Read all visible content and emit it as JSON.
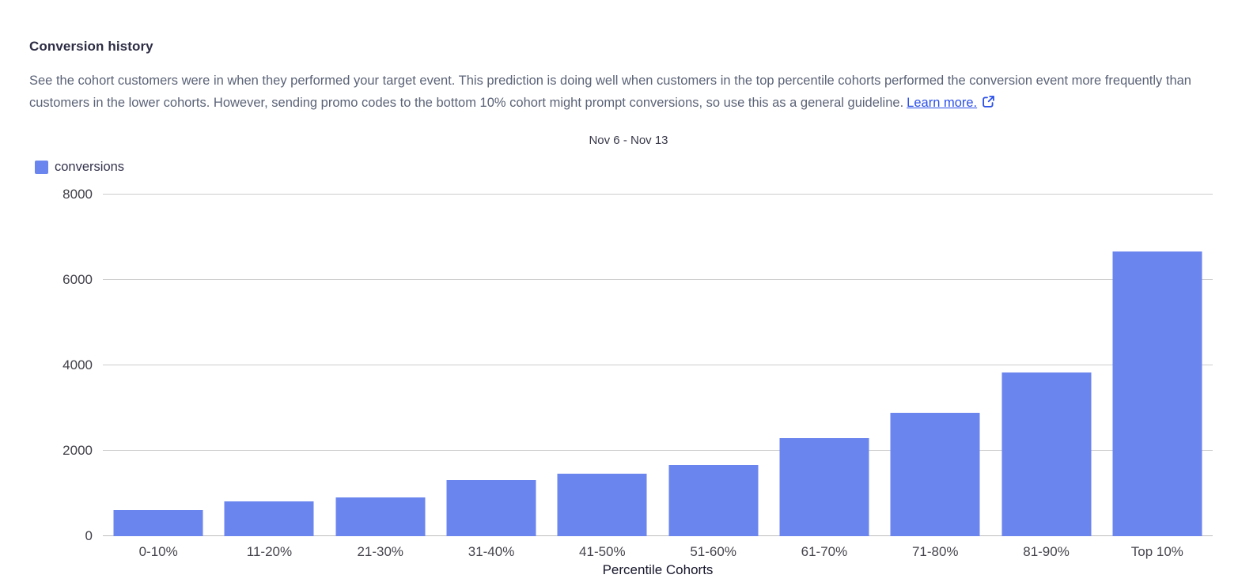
{
  "header": {
    "title": "Conversion history",
    "description": "See the cohort customers were in when they performed your target event. This prediction is doing well when customers in the top percentile cohorts performed the conversion event more frequently than customers in the lower cohorts. However, sending promo codes to the bottom 10% cohort might prompt conversions, so use this as a general guideline.",
    "learn_more_label": "Learn more.",
    "learn_more_icon": "external-link-icon",
    "link_color": "#2c50e8"
  },
  "chart_data": {
    "type": "bar",
    "title": "Nov 6 - Nov 13",
    "categories": [
      "0-10%",
      "11-20%",
      "21-30%",
      "31-40%",
      "41-50%",
      "51-60%",
      "61-70%",
      "71-80%",
      "81-90%",
      "Top 10%"
    ],
    "series": [
      {
        "name": "conversions",
        "color": "#6B85EE",
        "values": [
          610,
          815,
          905,
          1310,
          1470,
          1670,
          2305,
          2885,
          3825,
          6660
        ]
      }
    ],
    "legend": {
      "label": "conversions",
      "position": "top-left"
    },
    "xlabel": "Percentile Cohorts",
    "ylabel": "",
    "ylim": [
      0,
      8000
    ],
    "yticks": [
      0,
      2000,
      4000,
      6000,
      8000
    ],
    "grid": true,
    "gridline_color": "#cccccc",
    "background": "#ffffff"
  }
}
